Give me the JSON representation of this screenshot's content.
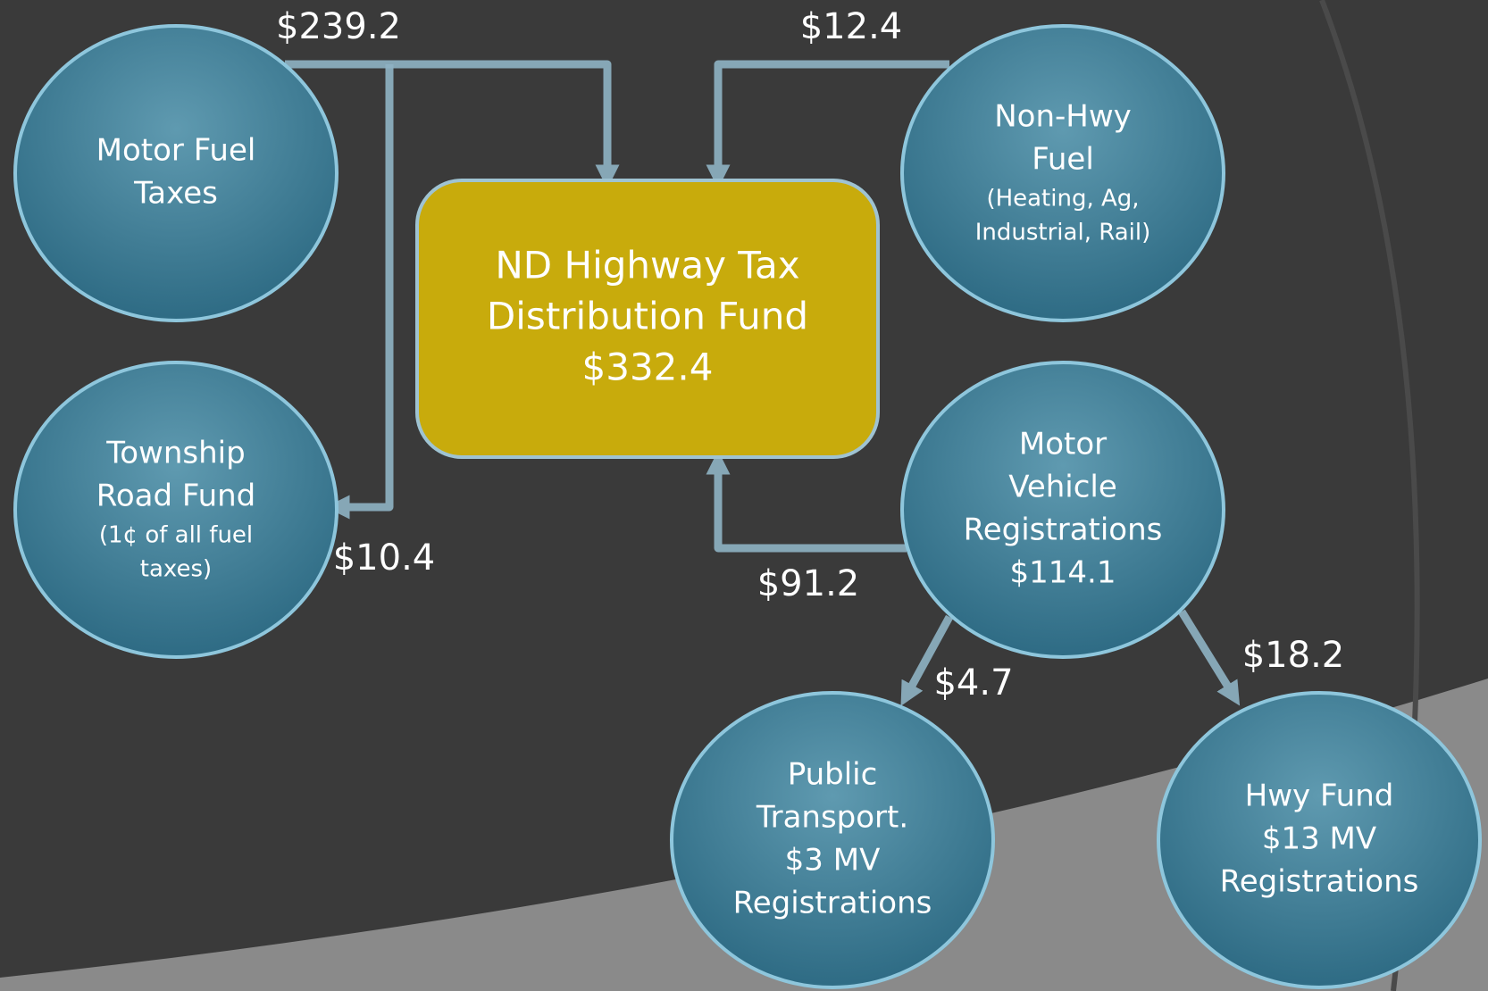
{
  "nodes": [
    {
      "lines": [
        "Motor Fuel",
        "Taxes"
      ]
    },
    {
      "lines": [
        "Township",
        "Road Fund"
      ],
      "note": [
        "(1¢ of all fuel",
        "taxes)"
      ]
    },
    {
      "lines": [
        "ND Highway Tax",
        "Distribution Fund",
        "$332.4"
      ]
    },
    {
      "lines": [
        "Non-Hwy",
        "Fuel"
      ],
      "note": [
        "(Heating, Ag,",
        "Industrial, Rail)"
      ]
    },
    {
      "lines": [
        "Motor",
        "Vehicle",
        "Registrations",
        "$114.1"
      ]
    },
    {
      "lines": [
        "Public",
        "Transport.",
        "$3 MV",
        "Registrations"
      ]
    },
    {
      "lines": [
        "Hwy Fund",
        "$13 MV",
        "Registrations"
      ]
    }
  ],
  "flows": [
    "$239.2",
    "$12.4",
    "$10.4",
    "$91.2",
    "$4.7",
    "$18.2"
  ]
}
